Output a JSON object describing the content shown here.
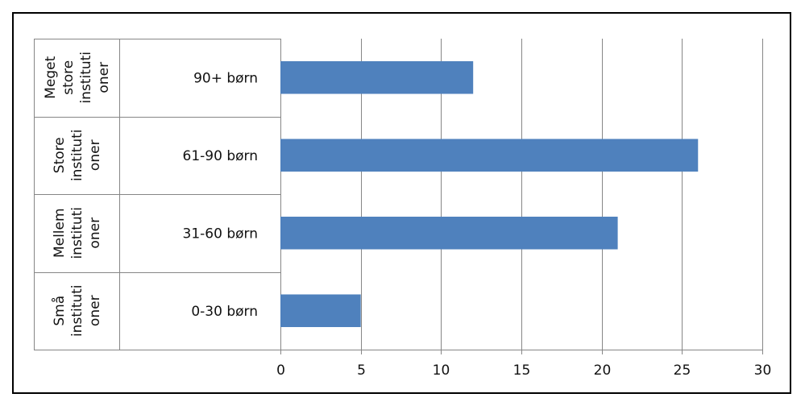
{
  "chart_data": {
    "type": "bar",
    "orientation": "horizontal",
    "categories": [
      "0-30 børn",
      "31-60 børn",
      "61-90 børn",
      "90+ børn"
    ],
    "groups": [
      [
        "Små",
        "instituti",
        "oner"
      ],
      [
        "Mellem",
        "instituti",
        "oner"
      ],
      [
        "Store",
        "instituti",
        "oner"
      ],
      [
        "Meget",
        "store",
        "instituti",
        "oner"
      ]
    ],
    "values": [
      5,
      21,
      26,
      12
    ],
    "xlim": [
      0,
      30
    ],
    "xticks": [
      "0",
      "5",
      "10",
      "15",
      "20",
      "25",
      "30"
    ],
    "grid": "vertical",
    "bar_color": "#4f81bd"
  }
}
